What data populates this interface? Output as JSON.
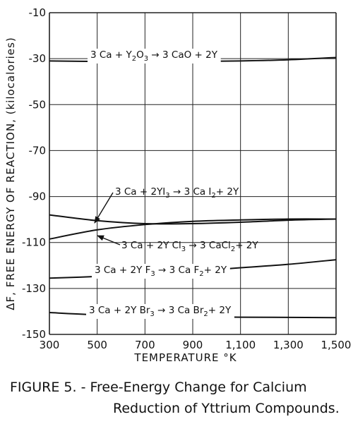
{
  "chart_data": {
    "type": "line",
    "xlabel": "TEMPERATURE °K",
    "ylabel": "ΔF, FREE ENERGY OF REACTION, (kilocalories)",
    "xlim": [
      300,
      1500
    ],
    "ylim": [
      -150,
      -10
    ],
    "x_ticks": [
      "300",
      "500",
      "700",
      "900",
      "1,100",
      "1,300",
      "1,500"
    ],
    "y_ticks": [
      "-10",
      "-30",
      "-50",
      "-70",
      "-90",
      "-110",
      "-130",
      "-150"
    ],
    "grid": true,
    "series": [
      {
        "name": "3Ca + Y2O3 → 3CaO + 2Y",
        "label_parts": [
          "3 Ca + Y",
          "2",
          "O",
          "3",
          " → 3 CaO + 2Y"
        ],
        "x": [
          300,
          500,
          700,
          900,
          1100,
          1300,
          1500
        ],
        "y": [
          -31.0,
          -31.2,
          -31.3,
          -31.2,
          -31.0,
          -30.5,
          -29.5
        ]
      },
      {
        "name": "3Ca + 2YI3 → 3CaI2 + 2Y",
        "label_parts": [
          "3 Ca + 2YI",
          "3",
          " → 3 Ca I",
          "2",
          "+ 2Y"
        ],
        "x": [
          300,
          500,
          700,
          900,
          1100,
          1300,
          1500
        ],
        "y": [
          -98.0,
          -100.5,
          -101.8,
          -101.8,
          -101.2,
          -100.3,
          -99.8
        ]
      },
      {
        "name": "3Ca + 2YCl3 → 3CaCl2 + 2Y",
        "label_parts": [
          "3 Ca + 2Y Cl",
          "3",
          " → 3 CaCl",
          "2",
          "+ 2Y"
        ],
        "x": [
          300,
          500,
          700,
          900,
          1100,
          1300,
          1500
        ],
        "y": [
          -108.5,
          -104.5,
          -102.2,
          -100.8,
          -100.2,
          -99.8,
          -99.8
        ]
      },
      {
        "name": "3Ca + 2YF3 → 3CaF2 + 2Y",
        "label_parts": [
          "3 Ca + 2Y F",
          "3",
          " → 3 Ca F",
          "2",
          "+ 2Y"
        ],
        "x": [
          300,
          500,
          700,
          900,
          1100,
          1300,
          1500
        ],
        "y": [
          -125.5,
          -124.8,
          -123.8,
          -122.5,
          -121.0,
          -119.5,
          -117.5
        ]
      },
      {
        "name": "3Ca + 2YBr3 → 3CaBr2 + 2Y",
        "label_parts": [
          "3 Ca + 2Y Br",
          "3",
          " → 3 Ca Br",
          "2",
          "+ 2Y"
        ],
        "x": [
          300,
          500,
          700,
          900,
          1100,
          1300,
          1500
        ],
        "y": [
          -140.5,
          -141.5,
          -142.0,
          -142.3,
          -142.5,
          -142.6,
          -142.7
        ]
      }
    ]
  },
  "caption": {
    "line1": "FIGURE 5. - Free-Energy Change for Calcium",
    "line2": "Reduction of Yttrium Compounds."
  }
}
